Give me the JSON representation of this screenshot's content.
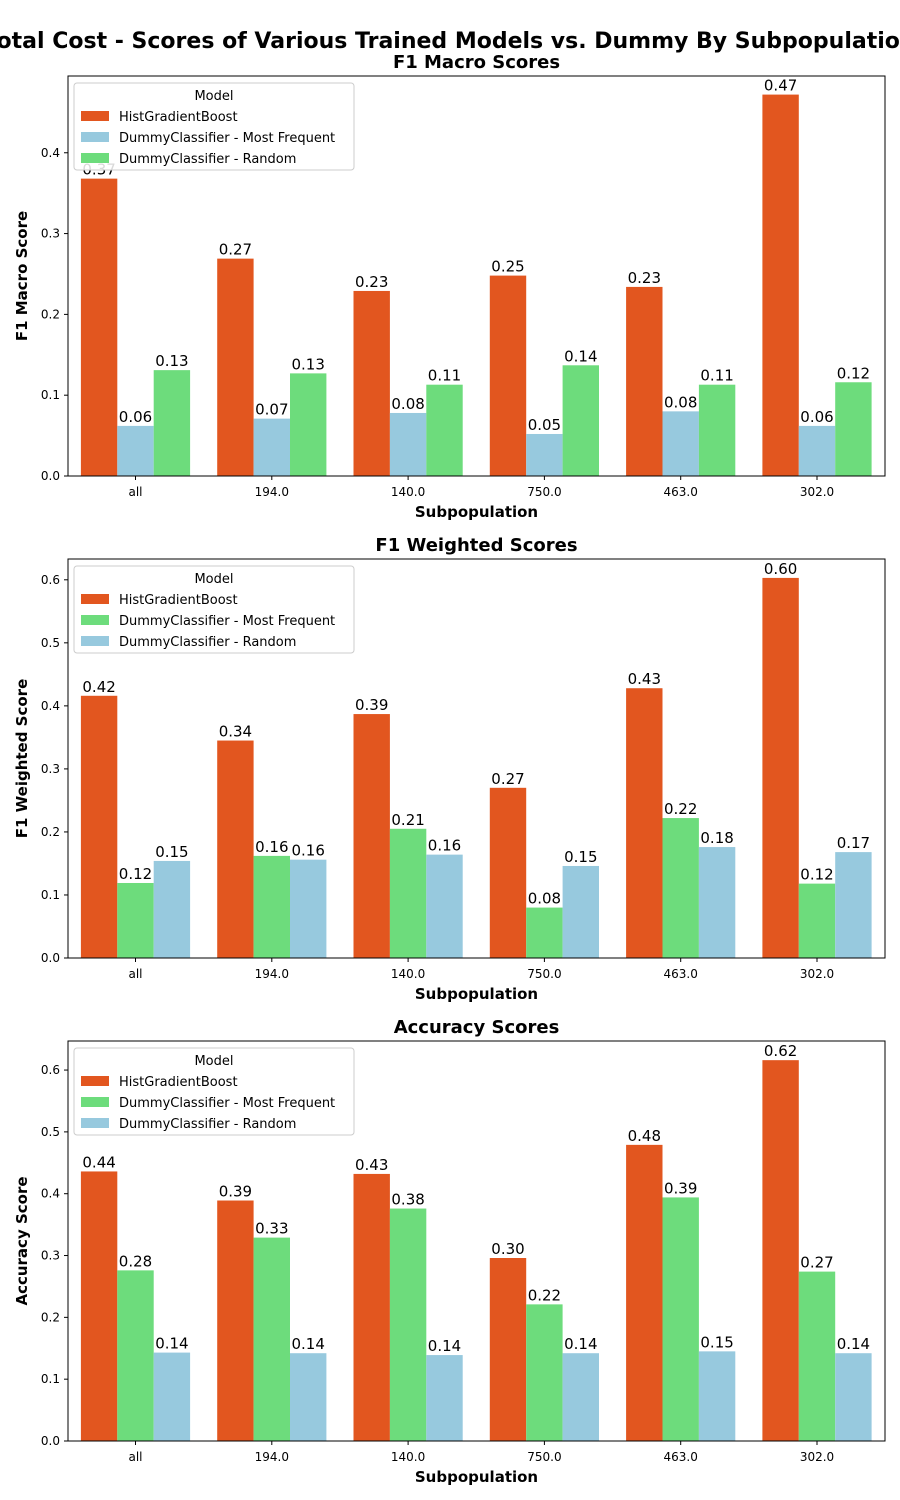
{
  "figure": {
    "suptitle": "Total Cost - Scores of Various Trained Models vs. Dummy By Subpopulation"
  },
  "colors": {
    "HistGradientBoost": "#e2561f",
    "DummyClassifier - Most Frequent": "#6ddc7c",
    "DummyClassifier - Random": "#97c9de",
    "Most Frequent (F1 Macro)": "#97c9de",
    "Random (F1 Macro)": "#6ddc7c"
  },
  "chart_data": [
    {
      "type": "bar",
      "title": "F1 Macro Scores",
      "xlabel": "Subpopulation",
      "ylabel": "F1 Macro Score",
      "ylim": [
        0,
        0.495
      ],
      "yticks": [
        "0.0",
        "0.1",
        "0.2",
        "0.3",
        "0.4"
      ],
      "ytick_values": [
        0,
        0.1,
        0.2,
        0.3,
        0.4
      ],
      "categories": [
        "all",
        "194.0",
        "140.0",
        "750.0",
        "463.0",
        "302.0"
      ],
      "legend": {
        "title": "Model",
        "position": "upper left"
      },
      "series": [
        {
          "name": "HistGradientBoost",
          "color": "#e2561f",
          "values": [
            0.368,
            0.269,
            0.229,
            0.248,
            0.234,
            0.472
          ],
          "labels": [
            "0.37",
            "0.27",
            "0.23",
            "0.25",
            "0.23",
            "0.47"
          ]
        },
        {
          "name": "DummyClassifier - Most Frequent",
          "color": "#97c9de",
          "values": [
            0.062,
            0.071,
            0.078,
            0.052,
            0.08,
            0.062
          ],
          "labels": [
            "0.06",
            "0.07",
            "0.08",
            "0.05",
            "0.08",
            "0.06"
          ]
        },
        {
          "name": "DummyClassifier - Random",
          "color": "#6ddc7c",
          "values": [
            0.131,
            0.127,
            0.113,
            0.137,
            0.113,
            0.116
          ],
          "labels": [
            "0.13",
            "0.13",
            "0.11",
            "0.14",
            "0.11",
            "0.12"
          ]
        }
      ]
    },
    {
      "type": "bar",
      "title": "F1 Weighted Scores",
      "xlabel": "Subpopulation",
      "ylabel": "F1 Weighted Score",
      "ylim": [
        0,
        0.633
      ],
      "yticks": [
        "0.0",
        "0.1",
        "0.2",
        "0.3",
        "0.4",
        "0.5",
        "0.6"
      ],
      "ytick_values": [
        0,
        0.1,
        0.2,
        0.3,
        0.4,
        0.5,
        0.6
      ],
      "categories": [
        "all",
        "194.0",
        "140.0",
        "750.0",
        "463.0",
        "302.0"
      ],
      "legend": {
        "title": "Model",
        "position": "upper left"
      },
      "series": [
        {
          "name": "HistGradientBoost",
          "color": "#e2561f",
          "values": [
            0.416,
            0.345,
            0.387,
            0.27,
            0.428,
            0.603
          ],
          "labels": [
            "0.42",
            "0.34",
            "0.39",
            "0.27",
            "0.43",
            "0.60"
          ]
        },
        {
          "name": "DummyClassifier - Most Frequent",
          "color": "#6ddc7c",
          "values": [
            0.119,
            0.162,
            0.205,
            0.08,
            0.222,
            0.118
          ],
          "labels": [
            "0.12",
            "0.16",
            "0.21",
            "0.08",
            "0.22",
            "0.12"
          ]
        },
        {
          "name": "DummyClassifier - Random",
          "color": "#97c9de",
          "values": [
            0.154,
            0.156,
            0.164,
            0.146,
            0.176,
            0.168
          ],
          "labels": [
            "0.15",
            "0.16",
            "0.16",
            "0.15",
            "0.18",
            "0.17"
          ]
        }
      ]
    },
    {
      "type": "bar",
      "title": "Accuracy Scores",
      "xlabel": "Subpopulation",
      "ylabel": "Accuracy Score",
      "ylim": [
        0,
        0.647
      ],
      "yticks": [
        "0.0",
        "0.1",
        "0.2",
        "0.3",
        "0.4",
        "0.5",
        "0.6"
      ],
      "ytick_values": [
        0,
        0.1,
        0.2,
        0.3,
        0.4,
        0.5,
        0.6
      ],
      "categories": [
        "all",
        "194.0",
        "140.0",
        "750.0",
        "463.0",
        "302.0"
      ],
      "legend": {
        "title": "Model",
        "position": "upper left"
      },
      "series": [
        {
          "name": "HistGradientBoost",
          "color": "#e2561f",
          "values": [
            0.436,
            0.389,
            0.432,
            0.296,
            0.479,
            0.616
          ],
          "labels": [
            "0.44",
            "0.39",
            "0.43",
            "0.30",
            "0.48",
            "0.62"
          ]
        },
        {
          "name": "DummyClassifier - Most Frequent",
          "color": "#6ddc7c",
          "values": [
            0.276,
            0.329,
            0.376,
            0.221,
            0.394,
            0.274
          ],
          "labels": [
            "0.28",
            "0.33",
            "0.38",
            "0.22",
            "0.39",
            "0.27"
          ]
        },
        {
          "name": "DummyClassifier - Random",
          "color": "#97c9de",
          "values": [
            0.143,
            0.142,
            0.139,
            0.142,
            0.145,
            0.142
          ],
          "labels": [
            "0.14",
            "0.14",
            "0.14",
            "0.14",
            "0.15",
            "0.14"
          ]
        }
      ]
    }
  ]
}
